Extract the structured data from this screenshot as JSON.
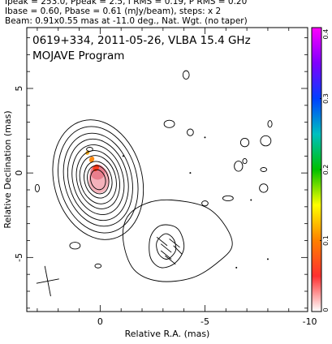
{
  "header": {
    "line1": "Ipeak = 253.0, Ppeak = 2.5, I RMS = 0.19, P RMS = 0.20",
    "line2": "Ibase = 0.60, Pbase = 0.61 (mJy/beam), steps: x 2",
    "line3": "Beam: 0.91x0.55 mas at -11.0 deg., Nat. Wgt. (no taper)"
  },
  "chart_data": {
    "type": "contour",
    "title": "0619+334, 2011-05-26, VLBA 15.4 GHz",
    "subtitle": "MOJAVE Program",
    "xlabel": "Relative R.A. (mas)",
    "ylabel": "Relative Declination (mas)",
    "xlim": [
      3.5,
      -9.9
    ],
    "ylim": [
      -8.2,
      8.6
    ],
    "x_ticks": [
      0,
      -5,
      -10
    ],
    "y_ticks": [
      5,
      0,
      -5
    ],
    "colorbar": {
      "range": [
        0,
        0.4
      ],
      "ticks": [
        "0",
        "0.1",
        "0.2",
        "0.3",
        "0.4"
      ],
      "colors": [
        "#ffffff",
        "#ff3030",
        "#ff8000",
        "#ffff00",
        "#00c000",
        "#00c0c0",
        "#0040ff",
        "#8000ff",
        "#ff00ff"
      ]
    },
    "core": {
      "center": [
        0.1,
        -0.4
      ],
      "pa_deg": -15,
      "contour_semiaxes": [
        [
          0.35,
          0.6
        ],
        [
          0.5,
          0.85
        ],
        [
          0.65,
          1.1
        ],
        [
          0.85,
          1.45
        ],
        [
          1.0,
          1.75
        ],
        [
          1.2,
          2.1
        ],
        [
          1.4,
          2.45
        ],
        [
          1.6,
          2.8
        ],
        [
          1.85,
          3.2
        ],
        [
          2.1,
          3.6
        ]
      ]
    },
    "jet_contours": [
      [
        [
          -3.4,
          -1.6
        ],
        [
          -2.2,
          -1.8
        ],
        [
          -1.3,
          -2.6
        ],
        [
          -1.1,
          -4.0
        ],
        [
          -1.6,
          -5.7
        ],
        [
          -2.8,
          -6.4
        ],
        [
          -4.4,
          -6.2
        ],
        [
          -5.6,
          -5.3
        ],
        [
          -6.3,
          -4.3
        ],
        [
          -5.9,
          -3.0
        ],
        [
          -5.0,
          -2.0
        ]
      ],
      [
        [
          -2.9,
          -3.1
        ],
        [
          -3.7,
          -3.3
        ],
        [
          -4.0,
          -4.4
        ],
        [
          -3.6,
          -5.3
        ],
        [
          -2.9,
          -5.6
        ],
        [
          -2.4,
          -5.0
        ],
        [
          -2.4,
          -3.8
        ]
      ],
      [
        [
          -3.1,
          -3.6
        ],
        [
          -3.5,
          -3.9
        ],
        [
          -3.6,
          -4.6
        ],
        [
          -3.2,
          -5.1
        ],
        [
          -2.8,
          -4.8
        ],
        [
          -2.7,
          -4.1
        ]
      ]
    ],
    "polarization_vectors": [
      [
        -2.7,
        -3.8,
        -3.2,
        -4.3
      ],
      [
        -2.9,
        -4.2,
        -3.4,
        -4.7
      ],
      [
        -2.9,
        -4.6,
        -3.4,
        -5.1
      ],
      [
        -3.1,
        -4.9,
        -3.6,
        -5.4
      ],
      [
        -3.3,
        -3.9,
        -3.8,
        -4.4
      ],
      [
        -3.5,
        -4.3,
        -3.9,
        -4.8
      ]
    ],
    "color_core": [
      [
        0.05,
        -0.4,
        0.5,
        0.8
      ],
      [
        0.12,
        0.05,
        0.35,
        0.45
      ]
    ],
    "color_streak": [
      [
        0.2,
        0.3
      ],
      [
        0.4,
        0.8
      ],
      [
        0.6,
        1.2
      ]
    ],
    "noise_contours": [
      [
        -4.1,
        5.8,
        0.15,
        0.25
      ],
      [
        -4.3,
        2.4,
        0.15,
        0.2
      ],
      [
        -6.9,
        1.8,
        0.2,
        0.25
      ],
      [
        -7.9,
        1.9,
        0.25,
        0.3
      ],
      [
        -6.6,
        0.4,
        0.2,
        0.3
      ],
      [
        -3.3,
        2.9,
        0.25,
        0.22
      ],
      [
        -8.1,
        2.9,
        0.1,
        0.2
      ],
      [
        -6.1,
        -1.5,
        0.25,
        0.15
      ],
      [
        -7.8,
        -0.9,
        0.2,
        0.25
      ],
      [
        1.2,
        -4.3,
        0.25,
        0.2
      ],
      [
        3.0,
        -0.9,
        0.1,
        0.22
      ],
      [
        0.1,
        -5.5,
        0.15,
        0.12
      ],
      [
        -5.0,
        -1.8,
        0.15,
        0.15
      ],
      [
        0.5,
        1.4,
        0.15,
        0.12
      ],
      [
        -6.9,
        0.7,
        0.1,
        0.15
      ],
      [
        -7.8,
        0.2,
        0.15,
        0.12
      ]
    ],
    "dots": [
      [
        -1.1,
        1.0
      ],
      [
        -5.0,
        2.1
      ],
      [
        -4.3,
        0.0
      ],
      [
        -6.5,
        -5.6
      ],
      [
        -7.2,
        -1.6
      ],
      [
        -8.0,
        -5.1
      ]
    ],
    "beam": {
      "x": 2.5,
      "y": -6.4,
      "major": 0.91,
      "minor": 0.55,
      "pa_deg": -11.0
    }
  }
}
